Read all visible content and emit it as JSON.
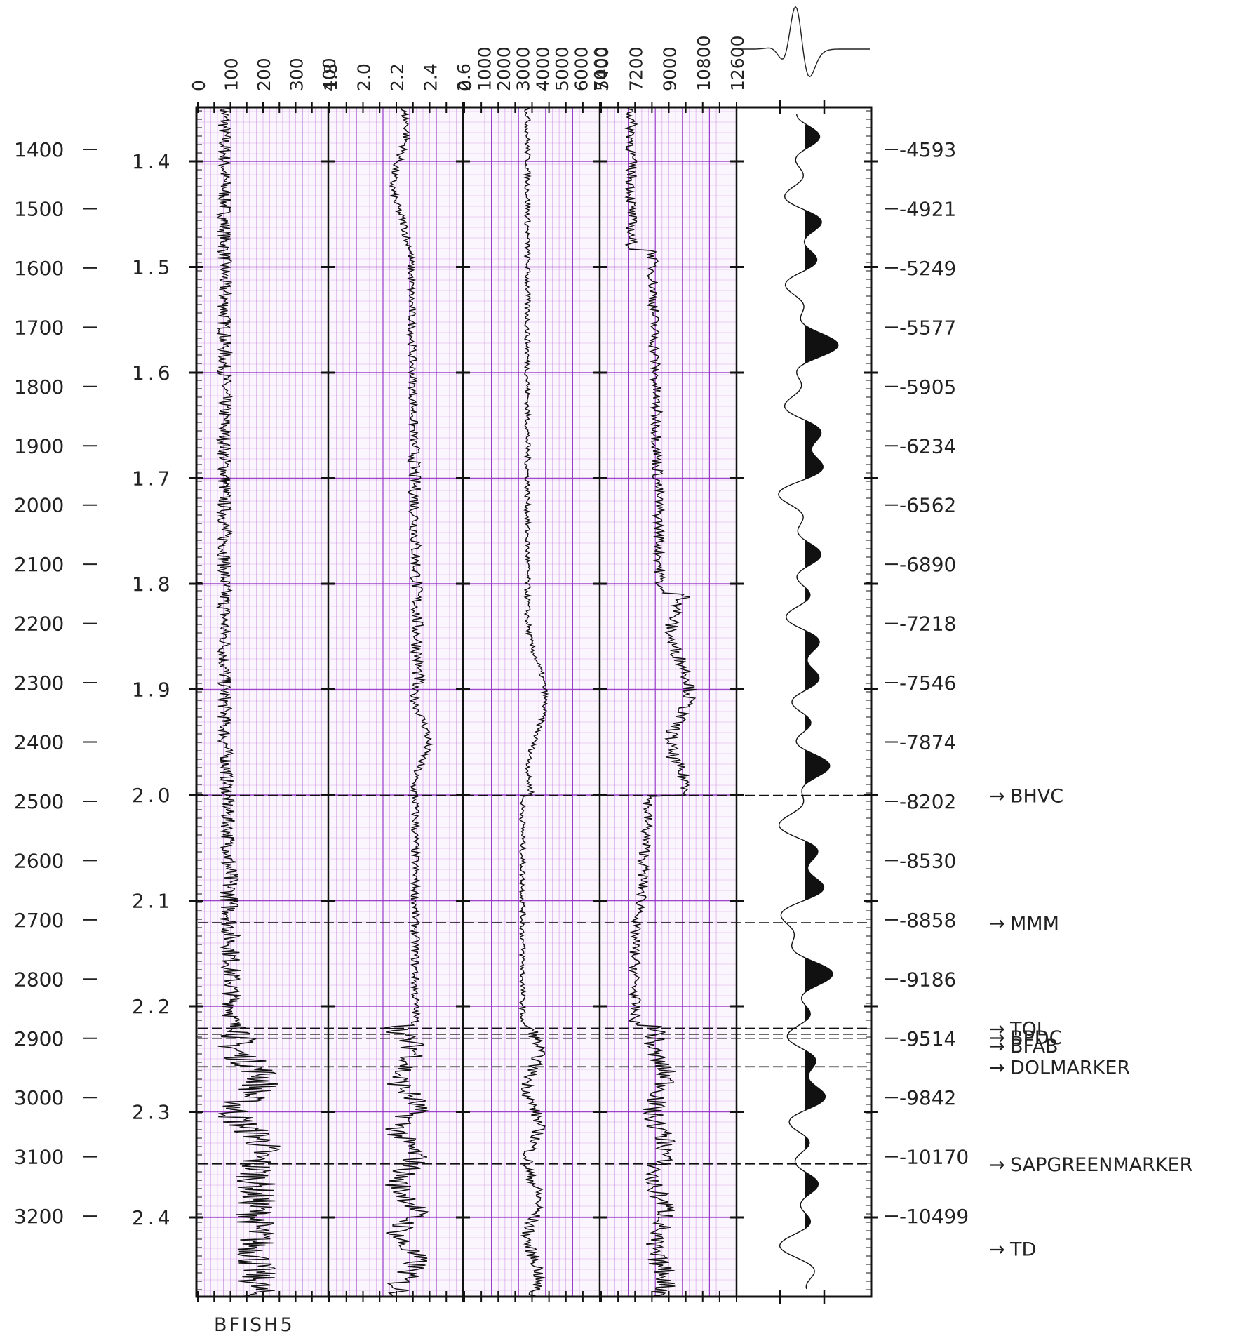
{
  "chart_data": {
    "type": "line",
    "title": "",
    "depth_axis": {
      "labels": [
        "1400",
        "1500",
        "1600",
        "1700",
        "1800",
        "1900",
        "2000",
        "2100",
        "2200",
        "2300",
        "2400",
        "2500",
        "2600",
        "2700",
        "2800",
        "2900",
        "3000",
        "3100",
        "3200"
      ]
    },
    "time_axis": {
      "labels": [
        "1.4",
        "1.5",
        "1.6",
        "1.7",
        "1.8",
        "1.9",
        "2.0",
        "2.1",
        "2.2",
        "2.3",
        "2.4"
      ]
    },
    "subsea_axis": {
      "labels": [
        "-4593",
        "-4921",
        "-5249",
        "-5577",
        "-5905",
        "-6234",
        "-6562",
        "-6890",
        "-7218",
        "-7546",
        "-7874",
        "-8202",
        "-8530",
        "-8858",
        "-9186",
        "-9514",
        "-9842",
        "-10170",
        "-10499"
      ]
    },
    "tracks": [
      {
        "id": "gr",
        "scale_labels": [
          "0",
          "100",
          "200",
          "300",
          "400"
        ],
        "bottom_label": "BFISH5"
      },
      {
        "id": "den",
        "scale_labels": [
          "1.8",
          "2.0",
          "2.2",
          "2.4",
          "2.6"
        ]
      },
      {
        "id": "vel",
        "scale_labels": [
          "0",
          "1000",
          "2000",
          "3000",
          "4000",
          "5000",
          "6000",
          "7000"
        ]
      },
      {
        "id": "ai",
        "scale_labels": [
          "5400",
          "7200",
          "9000",
          "10800",
          "12600"
        ]
      }
    ],
    "markers": [
      {
        "name": "BHVC",
        "depth": 2490,
        "label_depth": 2490
      },
      {
        "name": "MMM",
        "depth": 2705,
        "label_depth": 2705
      },
      {
        "name": "TOL",
        "depth": 2883,
        "label_depth": 2883
      },
      {
        "name": "BPDC",
        "depth": 2893,
        "label_depth": 2898
      },
      {
        "name": "BFAB",
        "depth": 2900,
        "label_depth": 2912
      },
      {
        "name": "DOLMARKER",
        "depth": 2948,
        "label_depth": 2948
      },
      {
        "name": "SAPGREENMARKER",
        "depth": 3112,
        "label_depth": 3112
      },
      {
        "name": "TD",
        "depth": 3255,
        "label_depth": 3255
      }
    ],
    "grid": true,
    "colors": {
      "grid": "#b04cd8",
      "grid_major": "#8f2ac4",
      "trace": "#111111",
      "paper": "#ffffff"
    }
  }
}
